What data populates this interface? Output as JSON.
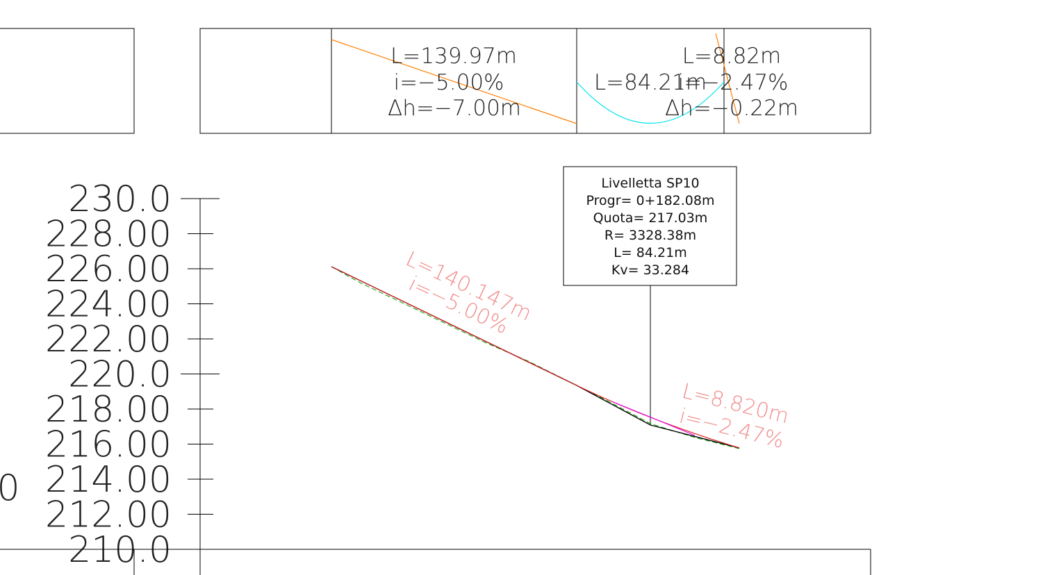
{
  "top_table": {
    "segment1": {
      "length": "L=139.97m",
      "grade": "i=−5.00%",
      "delta_h": "Δh=−7.00m"
    },
    "vertical_curve": {
      "length": "L=84.21m"
    },
    "segment2": {
      "length": "L=8.82m",
      "grade": "i=−2.47%",
      "delta_h": "Δh=−0.22m"
    }
  },
  "elevation_axis": {
    "ticks": [
      "230.0",
      "228.00",
      "226.00",
      "224.00",
      "222.00",
      "220.0",
      "218.00",
      "216.00",
      "214.00",
      "212.00",
      "210.0"
    ],
    "left_fragment": "0"
  },
  "callout": {
    "title": "Livelletta SP10",
    "progr": "Progr= 0+182.08m",
    "quota": "Quota= 217.03m",
    "radius": "R= 3328.38m",
    "length": "L= 84.21m",
    "kv": "Kv= 33.284"
  },
  "profile_labels": {
    "segment1_length": "L=140.147m",
    "segment1_grade": "i=−5.00%",
    "segment2_length": "L=8.820m",
    "segment2_grade": "i=−2.47%"
  },
  "colors": {
    "linework": "#000000",
    "grade_line": "#ff7f00",
    "vertical_curve": "#00e5ee",
    "profile_red": "#dd1f1f",
    "profile_label": "#f28c8c",
    "profile_magenta": "#e000e0",
    "ground_green": "#009900"
  }
}
